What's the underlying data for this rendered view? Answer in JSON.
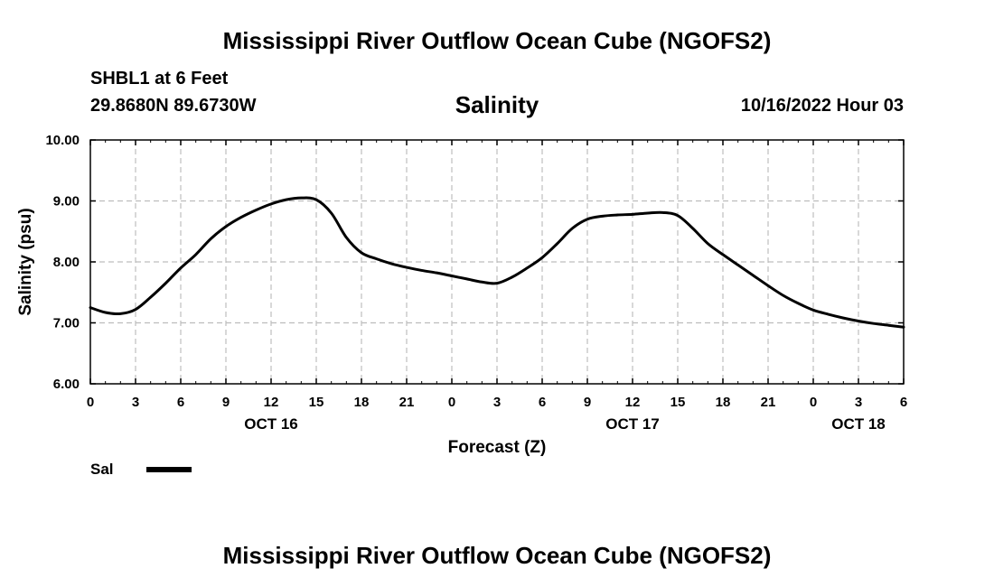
{
  "header": {
    "title": "Mississippi River Outflow Ocean Cube (NGOFS2)",
    "station": "SHBL1 at 6 Feet",
    "coords": "29.8680N  89.6730W",
    "subtitle": "Salinity",
    "timestamp": "10/16/2022 Hour 03"
  },
  "footer": {
    "title": "Mississippi River Outflow Ocean Cube (NGOFS2)"
  },
  "legend": {
    "label": "Sal",
    "color": "#000000"
  },
  "chart_data": {
    "type": "line",
    "title": "Salinity",
    "xlabel": "Forecast (Z)",
    "ylabel": "Salinity (psu)",
    "xlim": [
      0,
      54
    ],
    "ylim": [
      6.0,
      10.0
    ],
    "grid": true,
    "legend_position": "bottom-left",
    "y_ticks": [
      "6.00",
      "7.00",
      "8.00",
      "9.00",
      "10.00"
    ],
    "x_ticks": [
      {
        "h": 0,
        "label": "0"
      },
      {
        "h": 3,
        "label": "3"
      },
      {
        "h": 6,
        "label": "6"
      },
      {
        "h": 9,
        "label": "9"
      },
      {
        "h": 12,
        "label": "12"
      },
      {
        "h": 15,
        "label": "15"
      },
      {
        "h": 18,
        "label": "18"
      },
      {
        "h": 21,
        "label": "21"
      },
      {
        "h": 24,
        "label": "0"
      },
      {
        "h": 27,
        "label": "3"
      },
      {
        "h": 30,
        "label": "6"
      },
      {
        "h": 33,
        "label": "9"
      },
      {
        "h": 36,
        "label": "12"
      },
      {
        "h": 39,
        "label": "15"
      },
      {
        "h": 42,
        "label": "18"
      },
      {
        "h": 45,
        "label": "21"
      },
      {
        "h": 48,
        "label": "0"
      },
      {
        "h": 51,
        "label": "3"
      },
      {
        "h": 54,
        "label": "6"
      }
    ],
    "date_labels": [
      {
        "h": 12,
        "label": "OCT 16"
      },
      {
        "h": 36,
        "label": "OCT 17"
      },
      {
        "h": 51,
        "label": "OCT 18"
      }
    ],
    "series": [
      {
        "name": "Sal",
        "color": "#000000",
        "x": [
          0,
          1,
          2,
          3,
          4,
          5,
          6,
          7,
          8,
          9,
          10,
          11,
          12,
          13,
          14,
          15,
          16,
          17,
          18,
          19,
          20,
          21,
          22,
          23,
          24,
          25,
          26,
          27,
          28,
          29,
          30,
          31,
          32,
          33,
          34,
          35,
          36,
          37,
          38,
          39,
          40,
          41,
          42,
          43,
          44,
          45,
          46,
          47,
          48,
          49,
          50,
          51,
          52,
          53,
          54
        ],
        "values": [
          7.25,
          7.17,
          7.15,
          7.22,
          7.42,
          7.65,
          7.9,
          8.12,
          8.38,
          8.58,
          8.73,
          8.85,
          8.95,
          9.02,
          9.05,
          9.02,
          8.8,
          8.4,
          8.15,
          8.05,
          7.97,
          7.91,
          7.86,
          7.82,
          7.77,
          7.72,
          7.67,
          7.65,
          7.75,
          7.9,
          8.07,
          8.3,
          8.55,
          8.7,
          8.75,
          8.77,
          8.78,
          8.8,
          8.81,
          8.76,
          8.55,
          8.3,
          8.12,
          7.95,
          7.78,
          7.61,
          7.45,
          7.32,
          7.21,
          7.14,
          7.08,
          7.03,
          6.99,
          6.96,
          6.93
        ]
      }
    ]
  }
}
